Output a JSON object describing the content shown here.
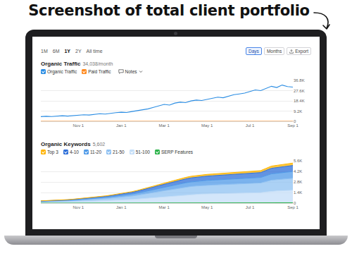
{
  "heading": "Screenshot of total client portfolio",
  "toolbar": {
    "periods": [
      "1M",
      "6M",
      "1Y",
      "2Y",
      "All time"
    ],
    "active_period": "1Y",
    "views": [
      "Days",
      "Months"
    ],
    "active_view": "Days",
    "export": "Export"
  },
  "notes": "Notes",
  "chart_data": [
    {
      "type": "line",
      "title": "Organic Traffic",
      "subtitle": "34,038/month",
      "categories": [
        null,
        null,
        null,
        null,
        null,
        null,
        null,
        "Nov 1",
        null,
        null,
        null,
        null,
        null,
        null,
        null,
        "Jan 1",
        null,
        null,
        null,
        null,
        null,
        null,
        null,
        "Mar 1",
        null,
        null,
        null,
        null,
        null,
        null,
        null,
        "May 1",
        null,
        null,
        null,
        null,
        null,
        null,
        null,
        "Jul 1",
        null,
        null,
        null,
        null,
        null,
        null,
        null,
        "Sep 1"
      ],
      "series": [
        {
          "name": "Organic Traffic",
          "color": "#2b8de3",
          "values": [
            4200,
            4500,
            4300,
            4800,
            5000,
            4700,
            5200,
            5500,
            5900,
            5600,
            6200,
            6800,
            6500,
            7300,
            7800,
            8200,
            7900,
            8800,
            9600,
            10400,
            11200,
            12500,
            13800,
            15200,
            14600,
            16400,
            17200,
            16800,
            18300,
            19100,
            18700,
            19800,
            20900,
            21700,
            21200,
            22800,
            23900,
            24600,
            25400,
            26800,
            28200,
            27600,
            29800,
            31500,
            30400,
            32600,
            31200,
            30800
          ]
        },
        {
          "name": "Paid Traffic",
          "color": "#ff8a1f",
          "values": [
            0,
            0,
            0,
            0,
            0,
            0,
            0,
            0,
            0,
            0,
            0,
            0,
            0,
            0,
            0,
            0,
            0,
            0,
            0,
            0,
            0,
            0,
            0,
            0,
            0,
            0,
            0,
            0,
            0,
            0,
            0,
            0,
            0,
            0,
            0,
            0,
            0,
            0,
            0,
            0,
            0,
            0,
            0,
            0,
            0,
            0,
            0,
            0
          ]
        }
      ],
      "ylim": [
        0,
        36800
      ],
      "yticks": [
        0,
        {
          "value": 9200,
          "label": "9.2K"
        },
        {
          "value": 18400,
          "label": "18.4K"
        },
        {
          "value": 27600,
          "label": "27.6K"
        },
        {
          "value": 36800,
          "label": "36.8K"
        }
      ],
      "grid": true
    },
    {
      "type": "area",
      "title": "Organic Keywords",
      "subtitle": "5,602",
      "stacked": true,
      "categories": [
        null,
        null,
        null,
        null,
        null,
        null,
        null,
        "Nov 1",
        null,
        null,
        null,
        null,
        null,
        null,
        null,
        "Jan 1",
        null,
        null,
        null,
        null,
        null,
        null,
        null,
        "Mar 1",
        null,
        null,
        null,
        null,
        null,
        null,
        null,
        "May 1",
        null,
        null,
        null,
        null,
        null,
        null,
        null,
        "Jul 1",
        null,
        null,
        null,
        null,
        null,
        null,
        null,
        "Sep 1"
      ],
      "series": [
        {
          "name": "Top 3",
          "color": "#ffb400",
          "values": [
            18,
            19,
            20,
            23,
            25,
            28,
            31,
            35,
            38,
            42,
            47,
            52,
            57,
            63,
            69,
            75,
            83,
            91,
            101,
            111,
            123,
            135,
            147,
            159,
            171,
            183,
            195,
            204,
            213,
            219,
            225,
            228,
            231,
            234,
            237,
            240,
            243,
            246,
            249,
            252,
            255,
            258,
            276,
            294,
            300,
            306,
            312,
            318
          ]
        },
        {
          "name": "4-10",
          "color": "#2e6fd8",
          "values": [
            45,
            48,
            51,
            57,
            63,
            69,
            78,
            87,
            96,
            105,
            117,
            129,
            143,
            158,
            173,
            188,
            207,
            228,
            252,
            278,
            308,
            338,
            368,
            398,
            428,
            458,
            488,
            510,
            533,
            548,
            563,
            570,
            578,
            585,
            593,
            600,
            608,
            615,
            623,
            630,
            638,
            645,
            690,
            735,
            750,
            765,
            780,
            795
          ]
        },
        {
          "name": "11-20",
          "color": "#4f9ae8",
          "values": [
            51,
            54,
            58,
            65,
            71,
            78,
            88,
            99,
            109,
            119,
            133,
            146,
            162,
            179,
            196,
            213,
            235,
            258,
            286,
            315,
            349,
            383,
            417,
            451,
            485,
            519,
            553,
            578,
            604,
            621,
            638,
            646,
            655,
            663,
            672,
            680,
            689,
            697,
            706,
            714,
            723,
            731,
            782,
            833,
            850,
            867,
            884,
            901
          ]
        },
        {
          "name": "21-50",
          "color": "#8fc1f2",
          "values": [
            90,
            96,
            102,
            114,
            126,
            138,
            156,
            174,
            192,
            210,
            234,
            258,
            285,
            315,
            345,
            375,
            414,
            456,
            504,
            555,
            615,
            675,
            735,
            795,
            855,
            915,
            975,
            1020,
            1065,
            1095,
            1125,
            1140,
            1155,
            1170,
            1185,
            1200,
            1215,
            1230,
            1245,
            1260,
            1275,
            1290,
            1380,
            1470,
            1500,
            1530,
            1560,
            1590
          ]
        },
        {
          "name": "51-100",
          "color": "#c4def8",
          "values": [
            96,
            102,
            109,
            122,
            134,
            147,
            166,
            186,
            205,
            224,
            250,
            275,
            304,
            336,
            368,
            400,
            442,
            486,
            538,
            592,
            656,
            720,
            784,
            848,
            912,
            976,
            1040,
            1088,
            1136,
            1168,
            1200,
            1216,
            1232,
            1248,
            1264,
            1280,
            1296,
            1312,
            1328,
            1344,
            1360,
            1376,
            1472,
            1568,
            1600,
            1632,
            1664,
            1696
          ]
        },
        {
          "name": "SERP Features",
          "color": "#2cb34a",
          "type": "line",
          "values": [
            5,
            5,
            6,
            6,
            7,
            7,
            8,
            8,
            9,
            9,
            10,
            10,
            11,
            12,
            12,
            13,
            14,
            15,
            16,
            17,
            18,
            19,
            20,
            21,
            22,
            23,
            24,
            25,
            26,
            27,
            28,
            28,
            29,
            29,
            30,
            30,
            31,
            31,
            32,
            32,
            33,
            33,
            34,
            35,
            36,
            37,
            38,
            39
          ]
        }
      ],
      "ylim": [
        0,
        5600
      ],
      "yticks": [
        0,
        {
          "value": 1400,
          "label": "1.4K"
        },
        {
          "value": 2800,
          "label": "2.8K"
        },
        {
          "value": 4200,
          "label": "4.2K"
        },
        {
          "value": 5600,
          "label": "5.6K"
        }
      ],
      "grid": true
    }
  ]
}
